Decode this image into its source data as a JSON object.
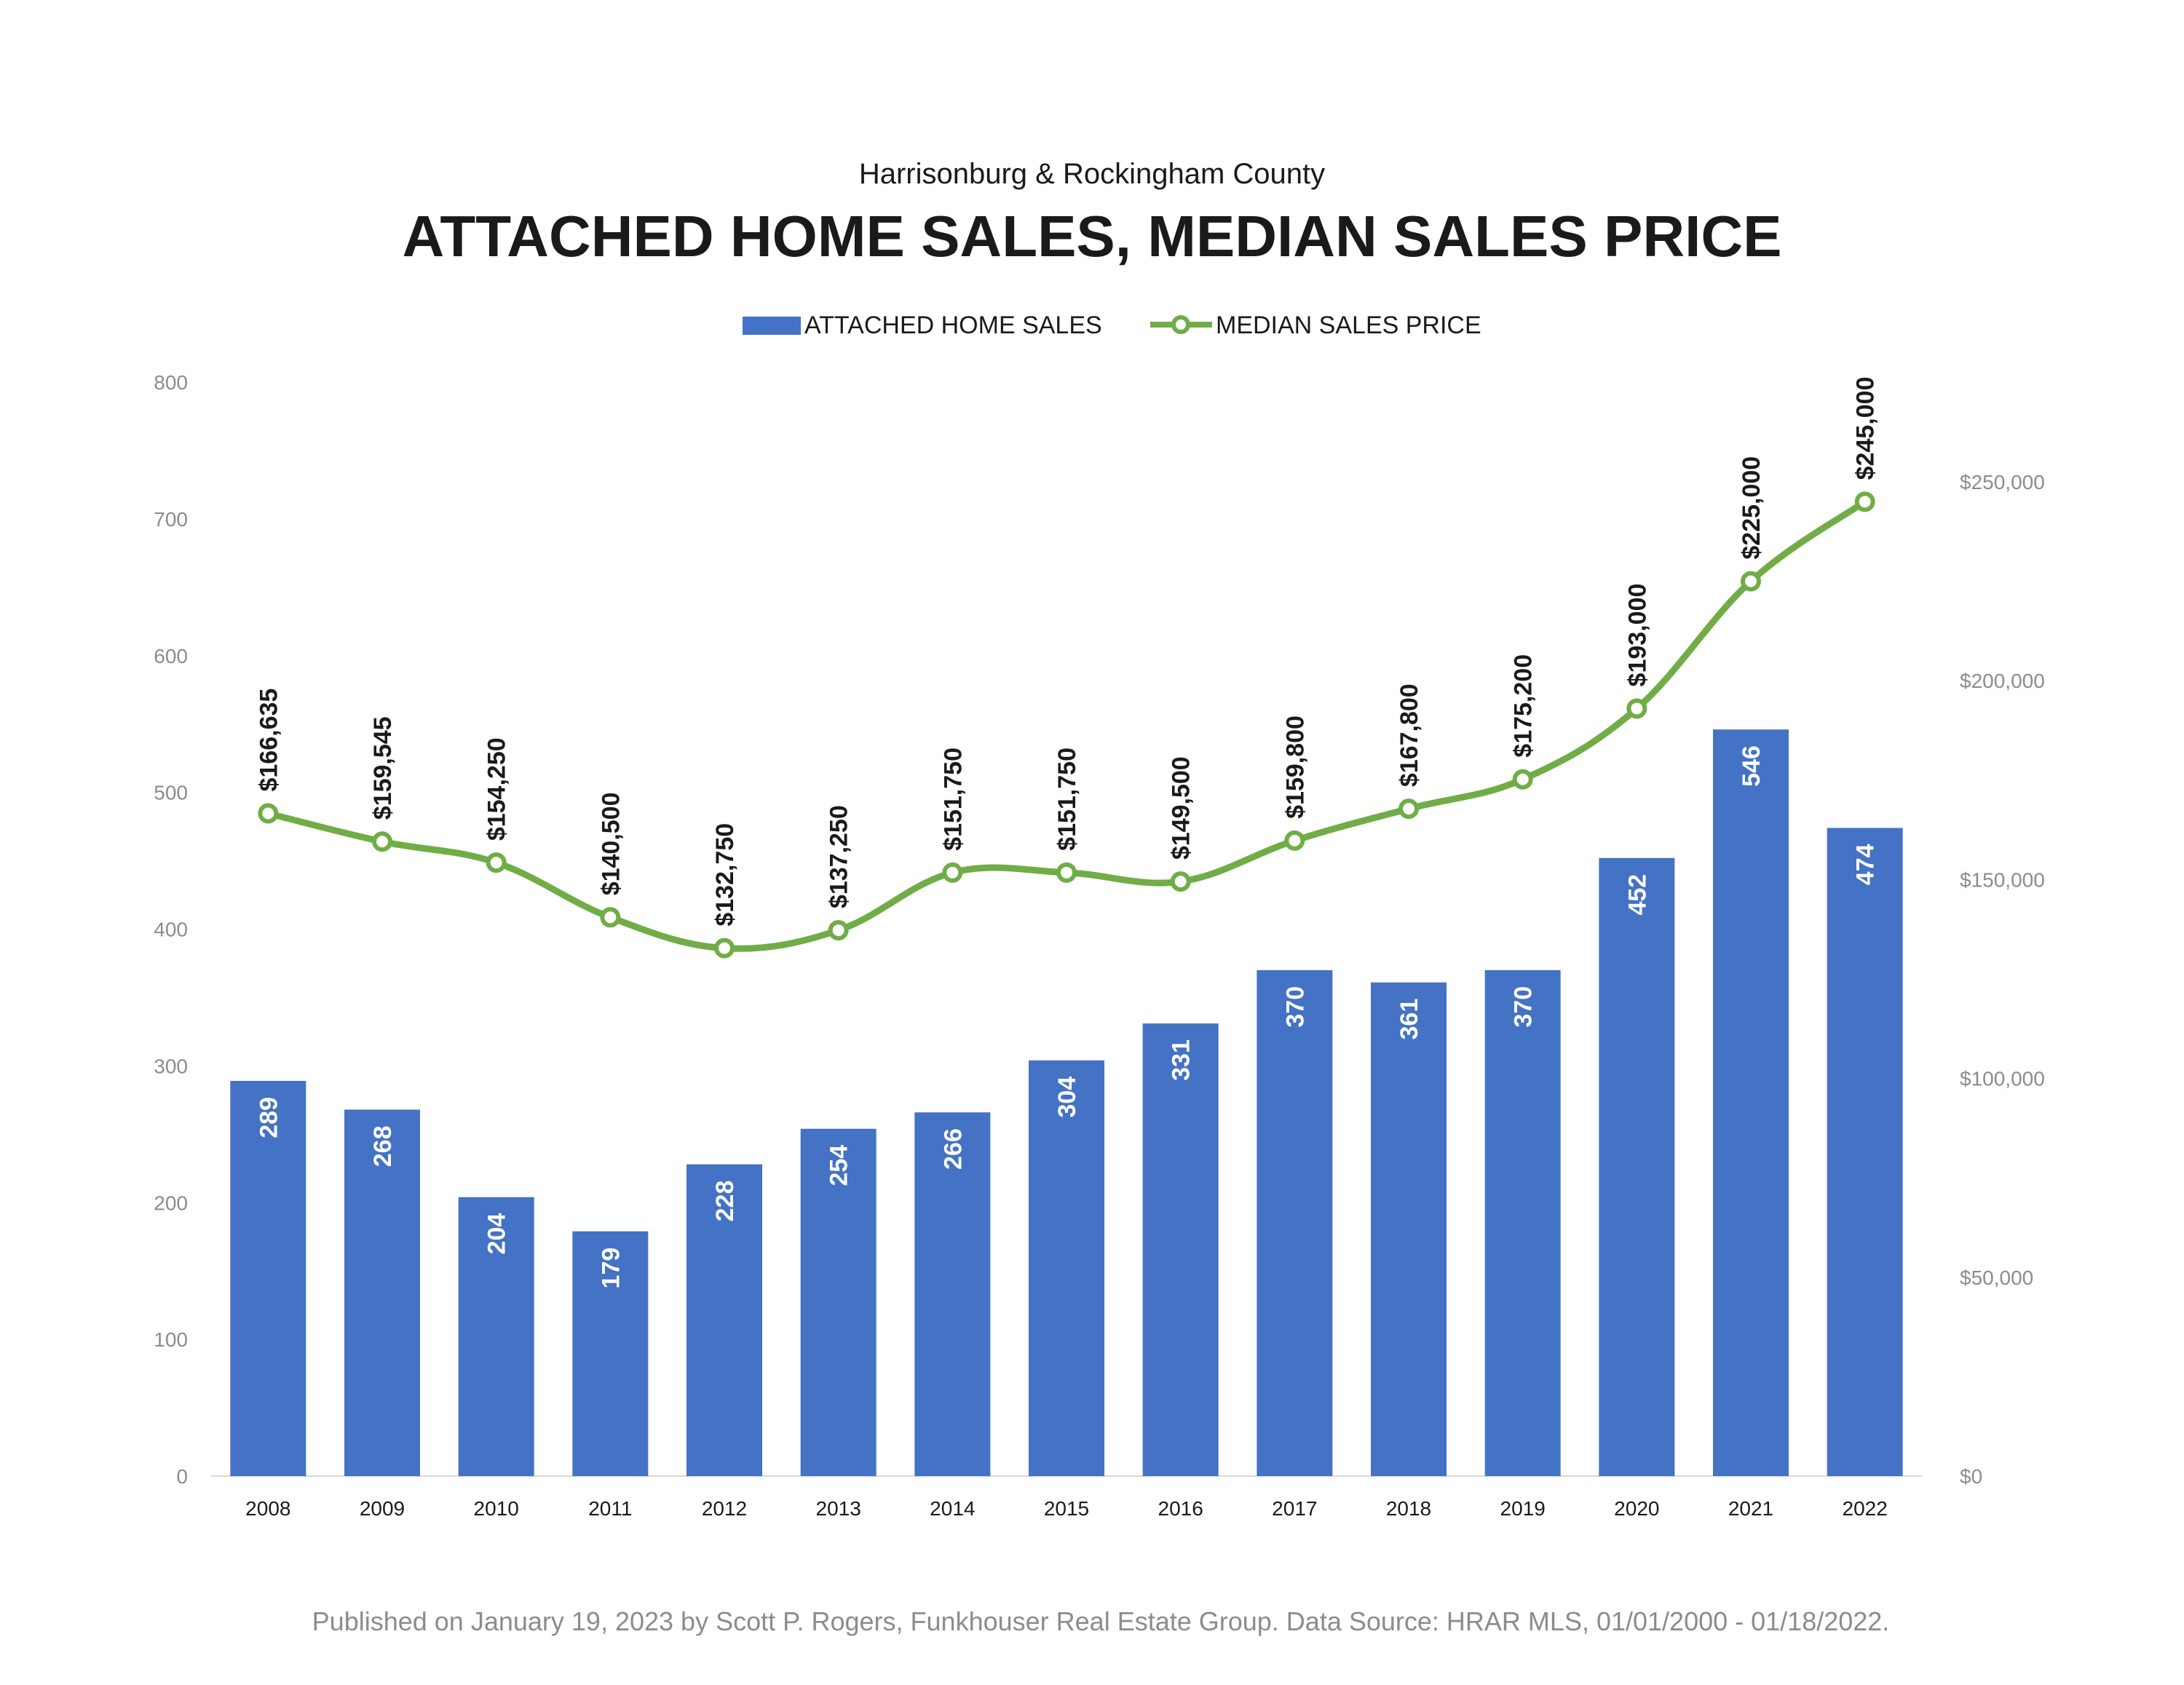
{
  "chart_data": {
    "type": "bar",
    "subtitle": "Harrisonburg & Rockingham County",
    "title": "ATTACHED HOME SALES, MEDIAN SALES PRICE",
    "categories": [
      "2008",
      "2009",
      "2010",
      "2011",
      "2012",
      "2013",
      "2014",
      "2015",
      "2016",
      "2017",
      "2018",
      "2019",
      "2020",
      "2021",
      "2022"
    ],
    "series": [
      {
        "name": "ATTACHED HOME SALES",
        "type": "bar",
        "axis": "left",
        "color": "#4472c4",
        "values": [
          289,
          268,
          204,
          179,
          228,
          254,
          266,
          304,
          331,
          370,
          361,
          370,
          452,
          546,
          474
        ],
        "labels": [
          "289",
          "268",
          "204",
          "179",
          "228",
          "254",
          "266",
          "304",
          "331",
          "370",
          "361",
          "370",
          "452",
          "546",
          "474"
        ]
      },
      {
        "name": "MEDIAN SALES PRICE",
        "type": "line",
        "axis": "right",
        "color": "#70ad47",
        "values": [
          166635,
          159545,
          154250,
          140500,
          132750,
          137250,
          151750,
          151750,
          149500,
          159800,
          167800,
          175200,
          193000,
          225000,
          245000
        ],
        "labels": [
          "$166,635",
          "$159,545",
          "$154,250",
          "$140,500",
          "$132,750",
          "$137,250",
          "$151,750",
          "$151,750",
          "$149,500",
          "$159,800",
          "$167,800",
          "$175,200",
          "$193,000",
          "$225,000",
          "$245,000"
        ]
      }
    ],
    "left_axis": {
      "ylim": [
        0,
        800
      ],
      "ticks": [
        "0",
        "100",
        "200",
        "300",
        "400",
        "500",
        "600",
        "700",
        "800"
      ]
    },
    "right_axis": {
      "ylim": [
        0,
        275000
      ],
      "ticks": [
        "$0",
        "$50,000",
        "$100,000",
        "$150,000",
        "$200,000",
        "$250,000"
      ]
    },
    "legend_position": "top-center",
    "grid": false
  },
  "footer": "Published on January 19, 2023 by Scott P. Rogers, Funkhouser Real Estate Group. Data Source: HRAR MLS, 01/01/2000 - 01/18/2022."
}
